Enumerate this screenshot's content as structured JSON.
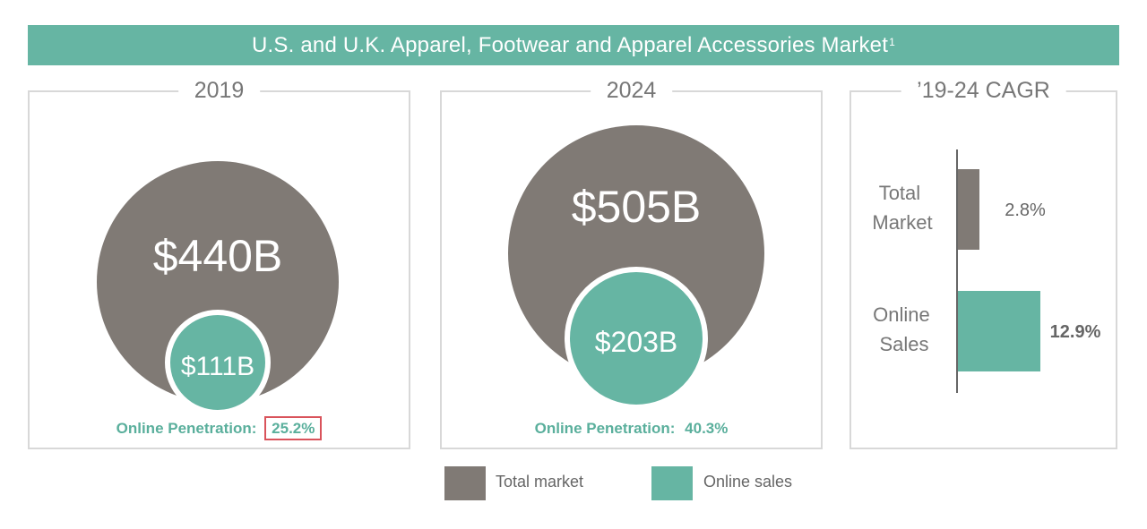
{
  "header": {
    "title": "U.S. and U.K. Apparel, Footwear and Apparel Accessories Market",
    "footnote": "1"
  },
  "colors": {
    "total": "#807a75",
    "online": "#66b5a3",
    "highlight": "#d9535b"
  },
  "chart_data": [
    {
      "type": "bubble",
      "title": "2019",
      "total_market": {
        "label": "$440B",
        "value": 440
      },
      "online_sales": {
        "label": "$111B",
        "value": 111
      },
      "penetration_label": "Online Penetration:",
      "penetration_value": "25.2%",
      "highlighted": true
    },
    {
      "type": "bubble",
      "title": "2024",
      "total_market": {
        "label": "$505B",
        "value": 505
      },
      "online_sales": {
        "label": "$203B",
        "value": 203
      },
      "penetration_label": "Online Penetration:",
      "penetration_value": "40.3%",
      "highlighted": false
    },
    {
      "type": "bar",
      "orientation": "horizontal",
      "title": "’19-24 CAGR",
      "categories": [
        "Total Market",
        "Online Sales"
      ],
      "category_lines": [
        [
          "Total",
          "Market"
        ],
        [
          "Online",
          "Sales"
        ]
      ],
      "values": [
        2.8,
        12.9
      ],
      "value_labels": [
        "2.8%",
        "12.9%"
      ],
      "value_bold": [
        false,
        true
      ],
      "unit": "%"
    }
  ],
  "legend": [
    {
      "label": "Total market",
      "color": "#807a75"
    },
    {
      "label": "Online sales",
      "color": "#66b5a3"
    }
  ]
}
